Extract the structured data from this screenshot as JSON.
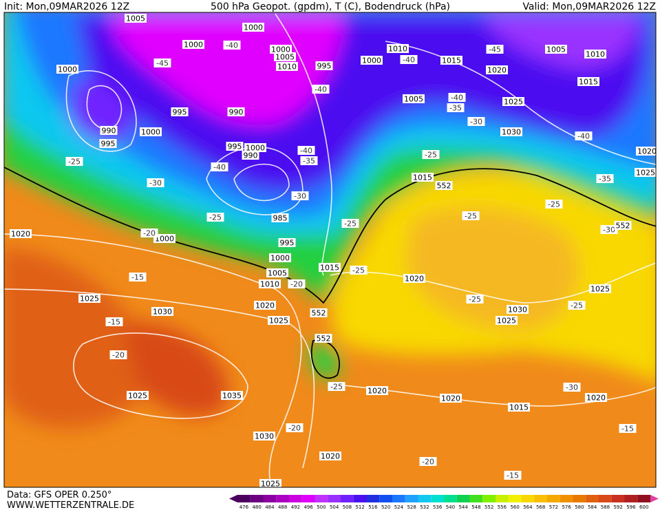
{
  "header": {
    "init": "Init: Mon,09MAR2026 12Z",
    "title": "500 hPa Geopot. (gpdm), T (C), Bodendruck (hPa)",
    "valid": "Valid: Mon,09MAR2026 12Z"
  },
  "footer": {
    "source": "Data: GFS OPER 0.250°",
    "site": "WWW.WETTERZENTRALE.DE"
  },
  "colorbar": {
    "ticks": [
      476,
      480,
      484,
      488,
      492,
      496,
      500,
      504,
      508,
      512,
      516,
      520,
      524,
      528,
      532,
      536,
      540,
      544,
      548,
      552,
      556,
      560,
      564,
      568,
      572,
      576,
      580,
      584,
      588,
      592,
      596,
      600
    ],
    "colors": [
      "#4b0060",
      "#6b0080",
      "#8b00a0",
      "#ab00c0",
      "#cc00e0",
      "#e000ff",
      "#c030ff",
      "#9a30ff",
      "#7020ff",
      "#4b10f0",
      "#2030e0",
      "#1050f0",
      "#1a78ff",
      "#20a0ff",
      "#10c8f0",
      "#00e0d0",
      "#00e090",
      "#10d050",
      "#40e020",
      "#80f000",
      "#c8f000",
      "#f0f000",
      "#f8d800",
      "#f8c000",
      "#f5a800",
      "#f09000",
      "#e87800",
      "#e06010",
      "#d84818",
      "#c83020",
      "#b02020",
      "#901020"
    ]
  },
  "pressure_labels": [
    "1005",
    "1000",
    "1000",
    "1000",
    "1005",
    "1010",
    "1010",
    "1015",
    "1000",
    "995",
    "1000",
    "1005",
    "1010",
    "1020",
    "1015",
    "1025",
    "1005",
    "995",
    "990",
    "990",
    "995",
    "1000",
    "995",
    "1000",
    "990",
    "1030",
    "1020",
    "1025",
    "1015",
    "985",
    "995",
    "1000",
    "1020",
    "1000",
    "1005",
    "1015",
    "1010",
    "1020",
    "1025",
    "1030",
    "1025",
    "1020",
    "1025",
    "1030",
    "1025",
    "1035",
    "1025",
    "1030",
    "1020",
    "1020",
    "1015",
    "1020",
    "1020",
    "1025"
  ],
  "temperature_labels": [
    "-45",
    "-40",
    "-45",
    "-40",
    "-40",
    "-40",
    "-35",
    "-30",
    "-40",
    "-40",
    "-35",
    "-40",
    "-25",
    "-30",
    "-30",
    "-25",
    "-35",
    "-25",
    "-20",
    "-25",
    "-25",
    "-25",
    "-30",
    "-15",
    "-25",
    "-20",
    "-25",
    "-25",
    "-15",
    "-20",
    "-25",
    "-30",
    "-20",
    "-15",
    "-20",
    "-15"
  ],
  "geopotential_labels": [
    "552",
    "552",
    "552",
    "552"
  ]
}
